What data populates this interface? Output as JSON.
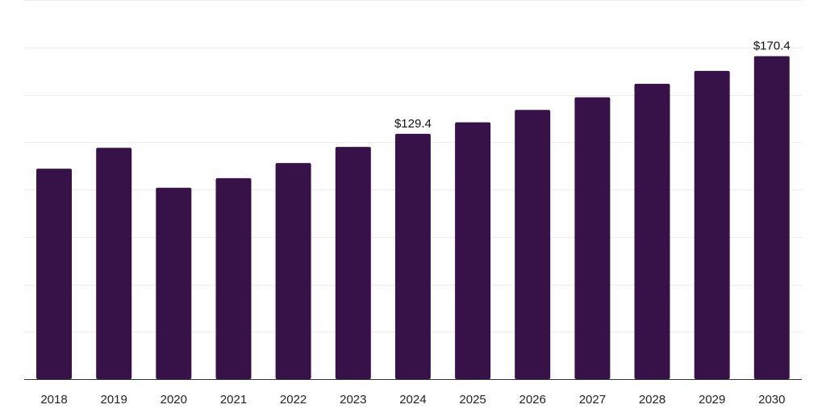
{
  "chart_data": {
    "type": "bar",
    "categories": [
      "2018",
      "2019",
      "2020",
      "2021",
      "2022",
      "2023",
      "2024",
      "2025",
      "2026",
      "2027",
      "2028",
      "2029",
      "2030"
    ],
    "values": [
      111,
      122,
      101,
      106,
      114,
      122.5,
      129.4,
      135.5,
      142,
      148.7,
      155.8,
      162.6,
      170.4
    ],
    "data_labels": [
      {
        "index": 6,
        "text": "$129.4"
      },
      {
        "index": 12,
        "text": "$170.4"
      }
    ],
    "ylim": [
      0,
      200
    ],
    "gridlines": [
      25,
      50,
      75,
      100,
      125,
      150,
      175,
      200
    ],
    "grid": true,
    "bar_color": "#371249"
  }
}
